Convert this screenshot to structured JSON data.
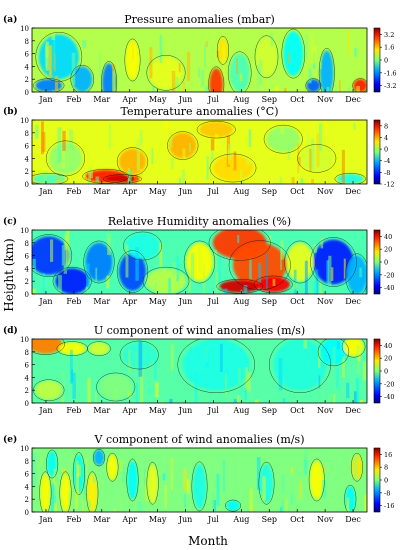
{
  "figure": {
    "ylabel": "Height (km)",
    "xlabel": "Month"
  },
  "chart_data": [
    {
      "type": "heatmap",
      "panel_tag": "(a)",
      "title": "Pressure anomalies (mbar)",
      "x_categories": [
        "Jan",
        "Feb",
        "Mar",
        "Apr",
        "May",
        "Jun",
        "Jul",
        "Aug",
        "Sep",
        "Oct",
        "Nov",
        "Dec"
      ],
      "ylim": [
        0,
        10
      ],
      "y_ticks": [
        0,
        2,
        4,
        6,
        8,
        10
      ],
      "colorbar_ticks": [
        3.2,
        1.6,
        0,
        -1.6,
        -3.2
      ],
      "vmin": -4,
      "vmax": 4
    },
    {
      "type": "heatmap",
      "panel_tag": "(b)",
      "title": "Temperature anomalies (°C)",
      "x_categories": [
        "Jan",
        "Feb",
        "Mar",
        "Apr",
        "May",
        "Jun",
        "Jul",
        "Aug",
        "Sep",
        "Oct",
        "Nov",
        "Dec"
      ],
      "ylim": [
        0,
        10
      ],
      "y_ticks": [
        0,
        2,
        4,
        6,
        8,
        10
      ],
      "colorbar_ticks": [
        8,
        4,
        0,
        -4,
        -8,
        -12
      ],
      "vmin": -12,
      "vmax": 10
    },
    {
      "type": "heatmap",
      "panel_tag": "(c)",
      "title": "Relative Humidity anomalies (%)",
      "x_categories": [
        "Jan",
        "Feb",
        "Mar",
        "Apr",
        "May",
        "Jun",
        "Jul",
        "Aug",
        "Sep",
        "Oct",
        "Nov",
        "Dec"
      ],
      "ylim": [
        0,
        10
      ],
      "y_ticks": [
        0,
        2,
        4,
        6,
        8,
        10
      ],
      "colorbar_ticks": [
        40,
        20,
        0,
        -20,
        -40
      ],
      "vmin": -50,
      "vmax": 50
    },
    {
      "type": "heatmap",
      "panel_tag": "(d)",
      "title": "U component of wind anomalies (m/s)",
      "x_categories": [
        "Jan",
        "Feb",
        "Mar",
        "Apr",
        "May",
        "Jun",
        "Jul",
        "Aug",
        "Sep",
        "Oct",
        "Nov",
        "Dec"
      ],
      "ylim": [
        0,
        10
      ],
      "y_ticks": [
        0,
        2,
        4,
        6,
        8,
        10
      ],
      "colorbar_ticks": [
        40,
        20,
        0,
        -20,
        -40
      ],
      "vmin": -50,
      "vmax": 50
    },
    {
      "type": "heatmap",
      "panel_tag": "(e)",
      "title": "V component of wind anomalies (m/s)",
      "x_categories": [
        "Jan",
        "Feb",
        "Mar",
        "Apr",
        "May",
        "Jun",
        "Jul",
        "Aug",
        "Sep",
        "Oct",
        "Nov",
        "Dec"
      ],
      "ylim": [
        0,
        10
      ],
      "y_ticks": [
        0,
        2,
        4,
        6,
        8,
        10
      ],
      "colorbar_ticks": [
        16,
        8,
        0,
        -8,
        -16
      ],
      "vmin": -20,
      "vmax": 20
    }
  ]
}
